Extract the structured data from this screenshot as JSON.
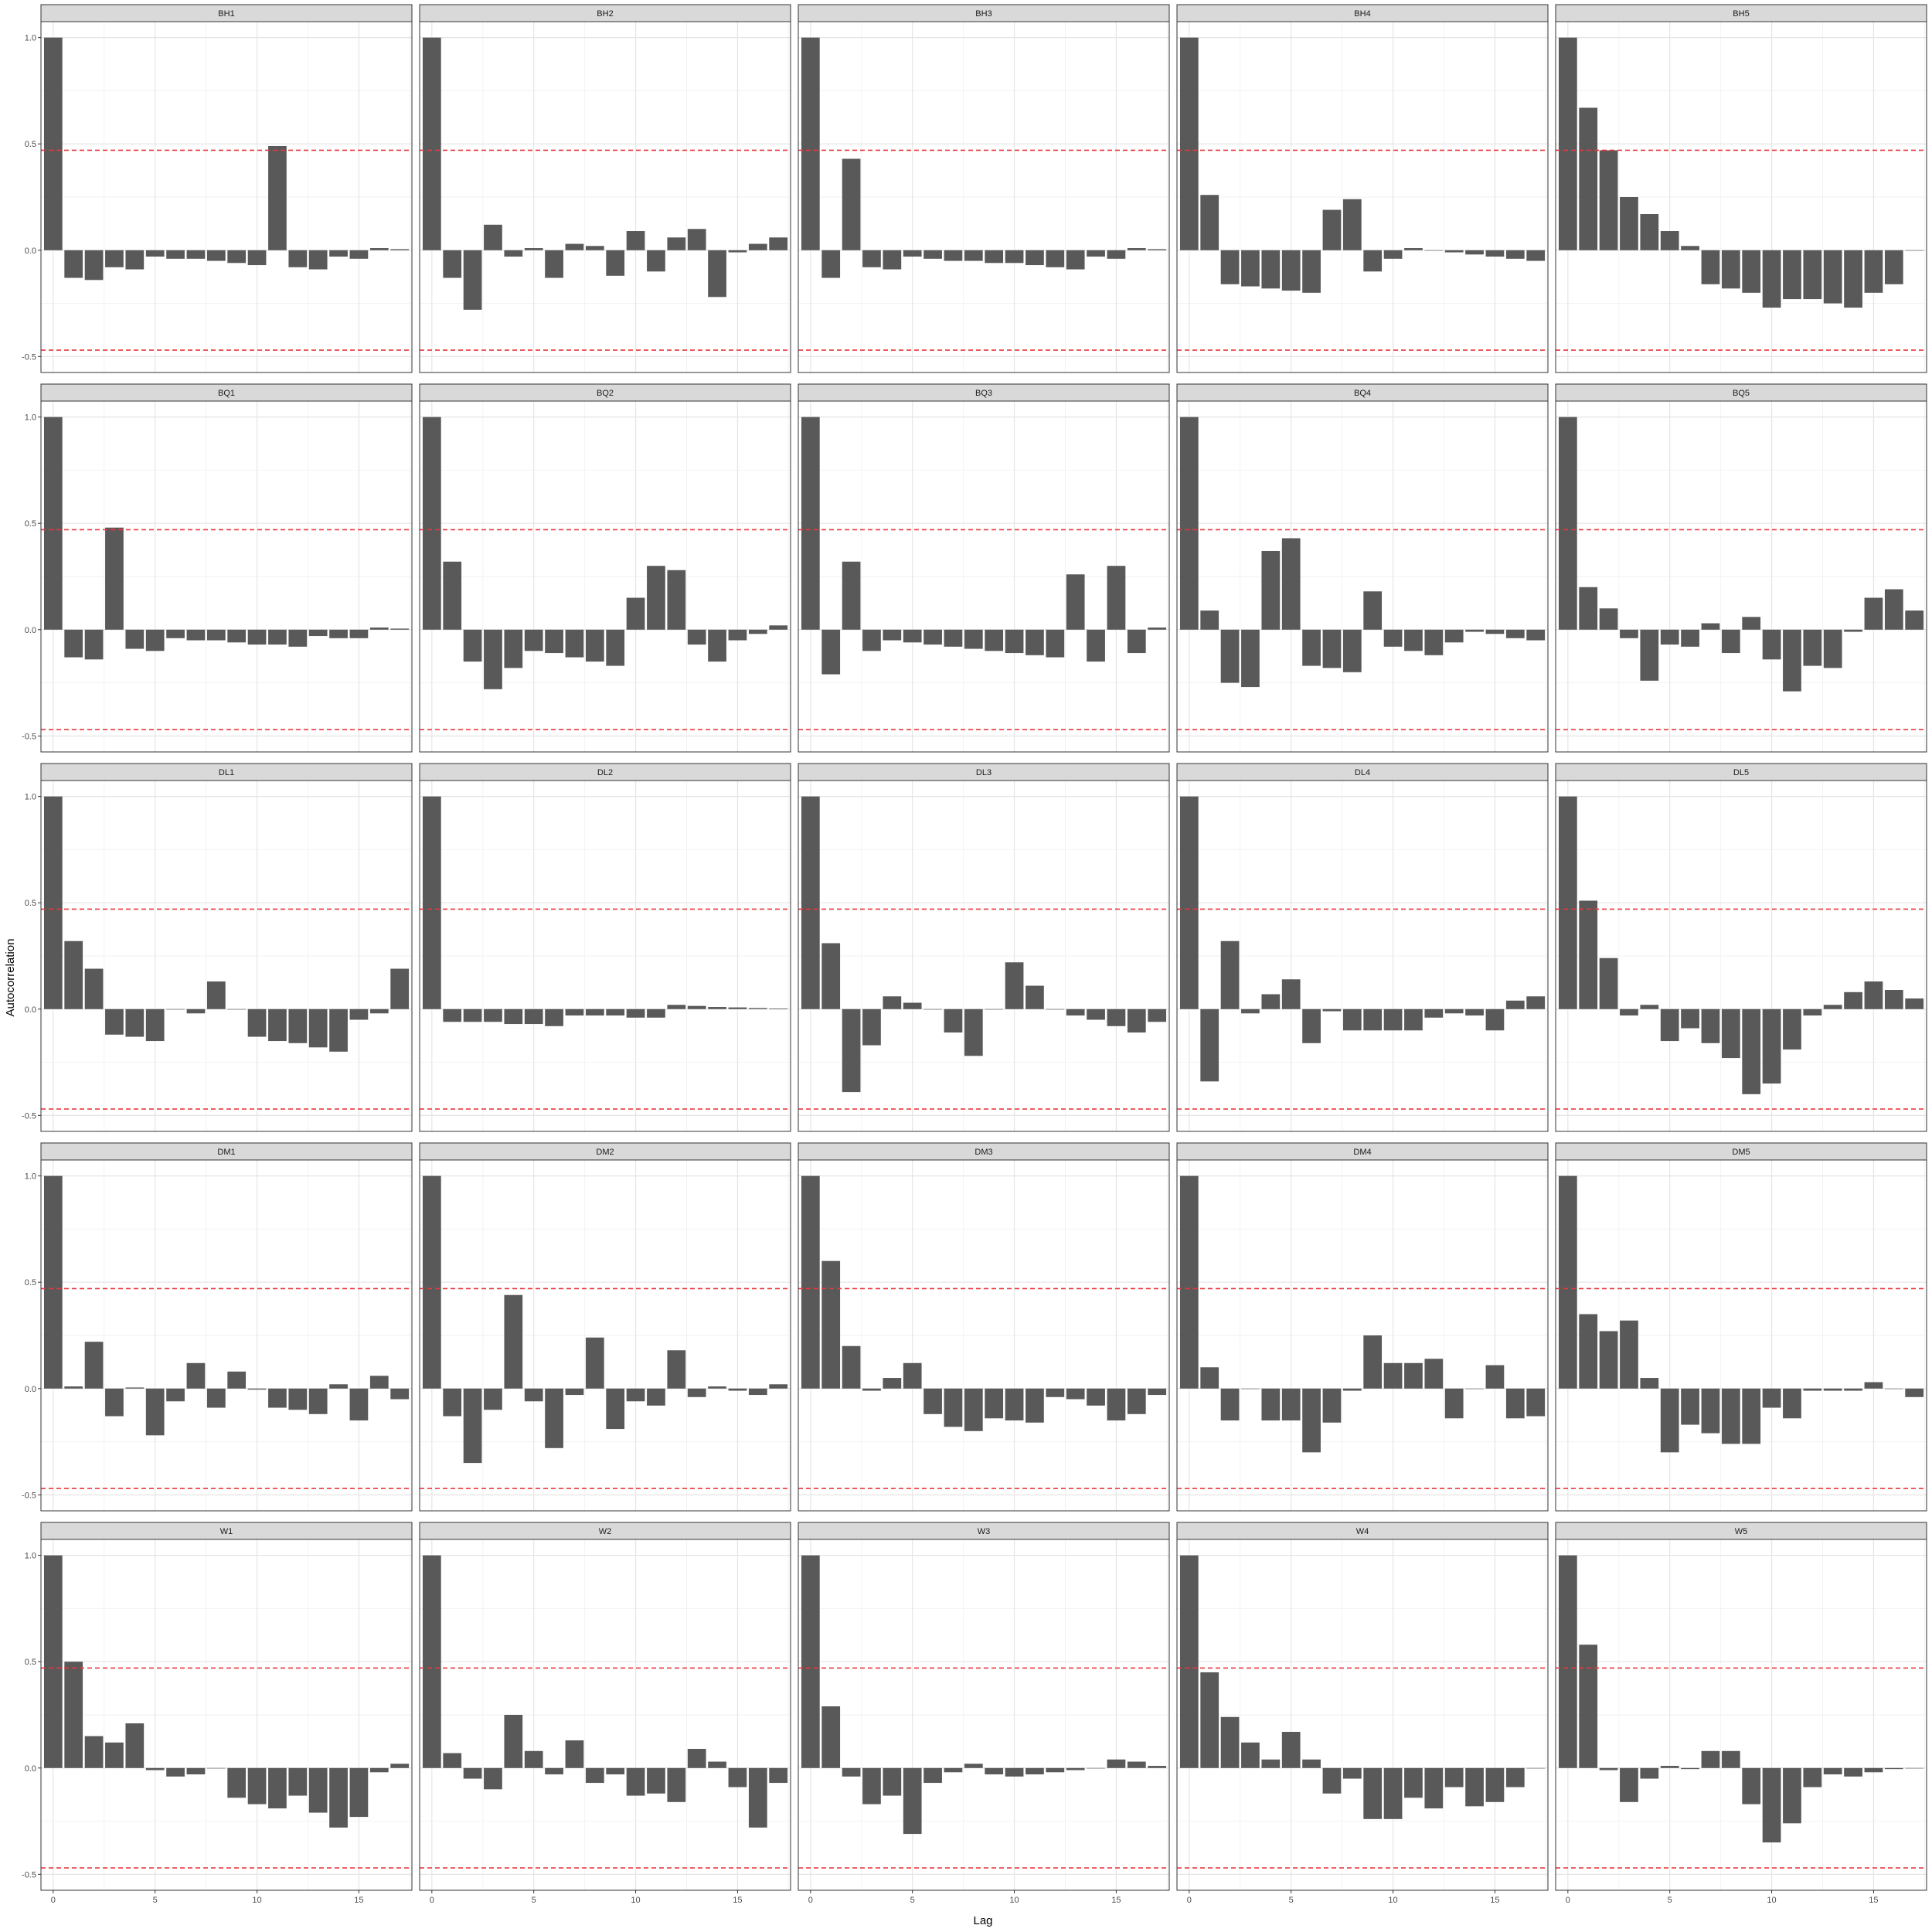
{
  "chart_data": {
    "type": "bar",
    "layout": "facet-grid",
    "xlabel": "Lag",
    "ylabel": "Autocorrelation",
    "xlim": [
      -0.6,
      17.6
    ],
    "ylim": [
      -0.5,
      1.0
    ],
    "x_ticks": [
      0,
      5,
      10,
      15
    ],
    "y_ticks": [
      -0.5,
      0.0,
      0.5,
      1.0
    ],
    "y_tick_labels": [
      "-0.5",
      "0.0",
      "0.5",
      "1.0"
    ],
    "x_tick_labels": [
      "0",
      "5",
      "10",
      "15"
    ],
    "confidence_bound": 0.47,
    "confidence_line_color": "#e8383d",
    "bar_color": "#595959",
    "strip_color": "#d9d9d9",
    "grid": true,
    "lags": [
      0,
      1,
      2,
      3,
      4,
      5,
      6,
      7,
      8,
      9,
      10,
      11,
      12,
      13,
      14,
      15,
      16,
      17
    ],
    "panels": [
      {
        "name": "BH1",
        "values": [
          1.0,
          -0.13,
          -0.14,
          -0.08,
          -0.09,
          -0.03,
          -0.04,
          -0.04,
          -0.05,
          -0.06,
          -0.07,
          0.49,
          -0.08,
          -0.09,
          -0.03,
          -0.04,
          0.01,
          0.005
        ]
      },
      {
        "name": "BH2",
        "values": [
          1.0,
          -0.13,
          -0.28,
          0.12,
          -0.03,
          0.01,
          -0.13,
          0.03,
          0.02,
          -0.12,
          0.09,
          -0.1,
          0.06,
          0.1,
          -0.22,
          -0.01,
          0.03,
          0.06
        ]
      },
      {
        "name": "BH3",
        "values": [
          1.0,
          -0.13,
          0.43,
          -0.08,
          -0.09,
          -0.03,
          -0.04,
          -0.05,
          -0.05,
          -0.06,
          -0.06,
          -0.07,
          -0.08,
          -0.09,
          -0.03,
          -0.04,
          0.01,
          0.005
        ]
      },
      {
        "name": "BH4",
        "values": [
          1.0,
          0.26,
          -0.16,
          -0.17,
          -0.18,
          -0.19,
          -0.2,
          0.19,
          0.24,
          -0.1,
          -0.04,
          0.01,
          0.0,
          -0.01,
          -0.02,
          -0.03,
          -0.04,
          -0.05
        ]
      },
      {
        "name": "BH5",
        "values": [
          1.0,
          0.67,
          0.47,
          0.25,
          0.17,
          0.09,
          0.02,
          -0.16,
          -0.18,
          -0.2,
          -0.27,
          -0.23,
          -0.23,
          -0.25,
          -0.27,
          -0.2,
          -0.16,
          0.0
        ]
      },
      {
        "name": "BQ1",
        "values": [
          1.0,
          -0.13,
          -0.14,
          0.48,
          -0.09,
          -0.1,
          -0.04,
          -0.05,
          -0.05,
          -0.06,
          -0.07,
          -0.07,
          -0.08,
          -0.03,
          -0.04,
          -0.04,
          0.01,
          0.005
        ]
      },
      {
        "name": "BQ2",
        "values": [
          1.0,
          0.32,
          -0.15,
          -0.28,
          -0.18,
          -0.1,
          -0.11,
          -0.13,
          -0.15,
          -0.17,
          0.15,
          0.3,
          0.28,
          -0.07,
          -0.15,
          -0.05,
          -0.02,
          0.02
        ]
      },
      {
        "name": "BQ3",
        "values": [
          1.0,
          -0.21,
          0.32,
          -0.1,
          -0.05,
          -0.06,
          -0.07,
          -0.08,
          -0.09,
          -0.1,
          -0.11,
          -0.12,
          -0.13,
          0.26,
          -0.15,
          0.3,
          -0.11,
          0.01
        ]
      },
      {
        "name": "BQ4",
        "values": [
          1.0,
          0.09,
          -0.25,
          -0.27,
          0.37,
          0.43,
          -0.17,
          -0.18,
          -0.2,
          0.18,
          -0.08,
          -0.1,
          -0.12,
          -0.06,
          -0.01,
          -0.02,
          -0.04,
          -0.05
        ]
      },
      {
        "name": "BQ5",
        "values": [
          1.0,
          0.2,
          0.1,
          -0.04,
          -0.24,
          -0.07,
          -0.08,
          0.03,
          -0.11,
          0.06,
          -0.14,
          -0.29,
          -0.17,
          -0.18,
          -0.01,
          0.15,
          0.19,
          0.09
        ]
      },
      {
        "name": "DL1",
        "values": [
          1.0,
          0.32,
          0.19,
          -0.12,
          -0.13,
          -0.15,
          0.0,
          -0.02,
          0.13,
          0.0,
          -0.13,
          -0.15,
          -0.16,
          -0.18,
          -0.2,
          -0.05,
          -0.02,
          0.19
        ]
      },
      {
        "name": "DL2",
        "values": [
          1.0,
          -0.06,
          -0.06,
          -0.06,
          -0.07,
          -0.07,
          -0.08,
          -0.03,
          -0.03,
          -0.03,
          -0.04,
          -0.04,
          0.02,
          0.015,
          0.01,
          0.008,
          0.005,
          0.003
        ]
      },
      {
        "name": "DL3",
        "values": [
          1.0,
          0.31,
          -0.39,
          -0.17,
          0.06,
          0.03,
          0.0,
          -0.11,
          -0.22,
          0.0,
          0.22,
          0.11,
          0.0,
          -0.03,
          -0.05,
          -0.08,
          -0.11,
          -0.06
        ]
      },
      {
        "name": "DL4",
        "values": [
          1.0,
          -0.34,
          0.32,
          -0.02,
          0.07,
          0.14,
          -0.16,
          -0.01,
          -0.1,
          -0.1,
          -0.1,
          -0.1,
          -0.04,
          -0.02,
          -0.03,
          -0.1,
          0.04,
          0.06
        ]
      },
      {
        "name": "DL5",
        "values": [
          1.0,
          0.51,
          0.24,
          -0.03,
          0.02,
          -0.15,
          -0.09,
          -0.16,
          -0.23,
          -0.4,
          -0.35,
          -0.19,
          -0.03,
          0.02,
          0.08,
          0.13,
          0.09,
          0.05
        ]
      },
      {
        "name": "DM1",
        "values": [
          1.0,
          0.01,
          0.22,
          -0.13,
          0.005,
          -0.22,
          -0.06,
          0.12,
          -0.09,
          0.08,
          -0.005,
          -0.09,
          -0.1,
          -0.12,
          0.02,
          -0.15,
          0.06,
          -0.05
        ]
      },
      {
        "name": "DM2",
        "values": [
          1.0,
          -0.13,
          -0.35,
          -0.1,
          0.44,
          -0.06,
          -0.28,
          -0.03,
          0.24,
          -0.19,
          -0.06,
          -0.08,
          0.18,
          -0.04,
          0.01,
          -0.01,
          -0.03,
          0.02
        ]
      },
      {
        "name": "DM3",
        "values": [
          1.0,
          0.6,
          0.2,
          -0.01,
          0.05,
          0.12,
          -0.12,
          -0.18,
          -0.2,
          -0.14,
          -0.15,
          -0.16,
          -0.04,
          -0.05,
          -0.08,
          -0.15,
          -0.12,
          -0.03
        ]
      },
      {
        "name": "DM4",
        "values": [
          1.0,
          0.1,
          -0.15,
          0.0,
          -0.15,
          -0.15,
          -0.3,
          -0.16,
          -0.01,
          0.25,
          0.12,
          0.12,
          0.14,
          -0.14,
          0.0,
          0.11,
          -0.14,
          -0.13
        ]
      },
      {
        "name": "DM5",
        "values": [
          1.0,
          0.35,
          0.27,
          0.32,
          0.05,
          -0.3,
          -0.17,
          -0.21,
          -0.26,
          -0.26,
          -0.09,
          -0.14,
          -0.01,
          -0.01,
          -0.01,
          0.03,
          0.0,
          -0.04
        ]
      },
      {
        "name": "W1",
        "values": [
          1.0,
          0.5,
          0.15,
          0.12,
          0.21,
          -0.01,
          -0.04,
          -0.03,
          0.0,
          -0.14,
          -0.17,
          -0.19,
          -0.13,
          -0.21,
          -0.28,
          -0.23,
          -0.02,
          0.02
        ]
      },
      {
        "name": "W2",
        "values": [
          1.0,
          0.07,
          -0.05,
          -0.1,
          0.25,
          0.08,
          -0.03,
          0.13,
          -0.07,
          -0.03,
          -0.13,
          -0.12,
          -0.16,
          0.09,
          0.03,
          -0.09,
          -0.28,
          -0.07
        ]
      },
      {
        "name": "W3",
        "values": [
          1.0,
          0.29,
          -0.04,
          -0.17,
          -0.13,
          -0.31,
          -0.07,
          -0.02,
          0.02,
          -0.03,
          -0.04,
          -0.03,
          -0.02,
          -0.01,
          0.0,
          0.04,
          0.03,
          0.01
        ]
      },
      {
        "name": "W4",
        "values": [
          1.0,
          0.45,
          0.24,
          0.12,
          0.04,
          0.17,
          0.04,
          -0.12,
          -0.05,
          -0.24,
          -0.24,
          -0.14,
          -0.19,
          -0.09,
          -0.18,
          -0.16,
          -0.09,
          0.0
        ]
      },
      {
        "name": "W5",
        "values": [
          1.0,
          0.58,
          -0.01,
          -0.16,
          -0.05,
          0.01,
          -0.005,
          0.08,
          0.08,
          -0.17,
          -0.35,
          -0.26,
          -0.09,
          -0.03,
          -0.04,
          -0.02,
          -0.005,
          0.0
        ]
      }
    ]
  }
}
